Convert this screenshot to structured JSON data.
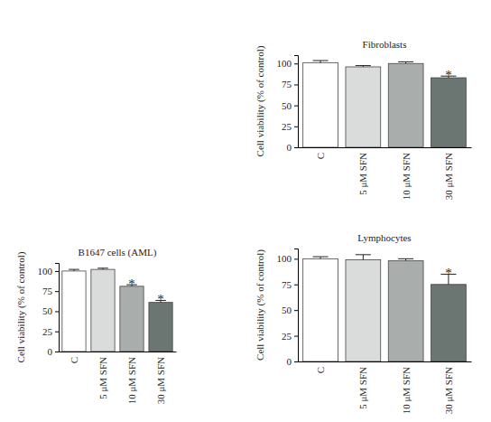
{
  "chart_data": [
    {
      "type": "bar",
      "title": "B1647 cells (AML)",
      "y_label": "Cell viability (% of control)",
      "categories": [
        "C",
        "5 μM SFN",
        "10 μM SFN",
        "30 μM SFN"
      ],
      "values": [
        100,
        102,
        81,
        61
      ],
      "errors": [
        2,
        1.5,
        2,
        2.5
      ],
      "significance": [
        null,
        null,
        "*",
        "*"
      ],
      "colors": [
        "#ffffff",
        "#d9dcdb",
        "#a9aeac",
        "#6b7572"
      ],
      "ylim": [
        0,
        110
      ],
      "yticks": [
        0,
        25,
        50,
        75,
        100
      ]
    },
    {
      "type": "bar",
      "title": "Fibroblasts",
      "y_label": "Cell viability (% of control)",
      "categories": [
        "C",
        "5 μM SFN",
        "10 μM SFN",
        "30 μM SFN"
      ],
      "values": [
        101,
        96,
        100,
        83
      ],
      "errors": [
        2.5,
        1.5,
        2,
        2
      ],
      "significance": [
        null,
        null,
        null,
        "*"
      ],
      "colors": [
        "#ffffff",
        "#d9dcdb",
        "#a9aeac",
        "#6b7572"
      ],
      "ylim": [
        0,
        110
      ],
      "yticks": [
        0,
        25,
        50,
        75,
        100
      ]
    },
    {
      "type": "bar",
      "title": "Lymphocytes",
      "y_label": "Cell viability (% of control)",
      "categories": [
        "C",
        "5 μM SFN",
        "10 μM SFN",
        "30 μM SFN"
      ],
      "values": [
        100,
        99,
        98,
        75
      ],
      "errors": [
        2,
        5,
        2,
        10
      ],
      "significance": [
        null,
        null,
        null,
        "*"
      ],
      "colors": [
        "#ffffff",
        "#d9dcdb",
        "#a9aeac",
        "#6b7572"
      ],
      "ylim": [
        0,
        110
      ],
      "yticks": [
        0,
        25,
        50,
        75,
        100
      ]
    }
  ]
}
